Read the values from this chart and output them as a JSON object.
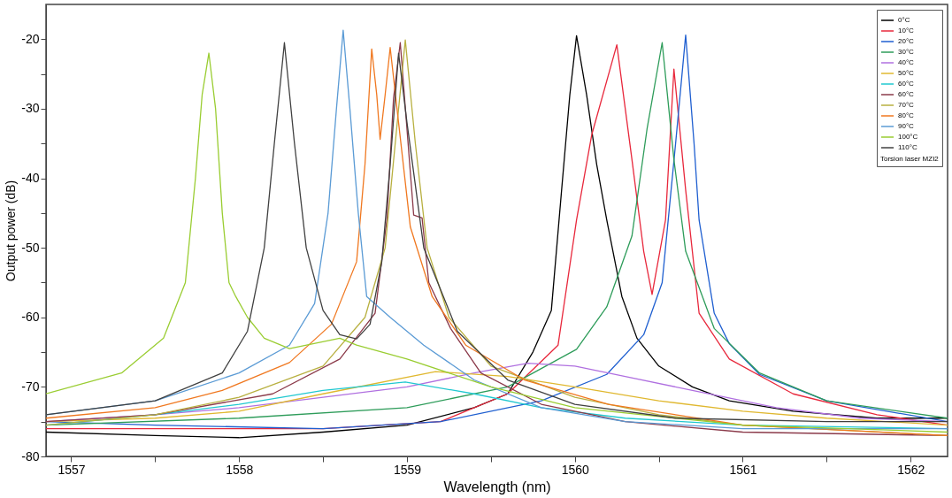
{
  "chart_data": {
    "type": "line",
    "xlabel": "Wavelength (nm)",
    "ylabel": "Output power (dB)",
    "legend_title": "Torsion laser MZI2",
    "legend": "top right",
    "grid": false,
    "marker": "none",
    "line_style": "solid",
    "xlim": [
      1556.85,
      1562.22
    ],
    "ylim": [
      -80,
      -15
    ],
    "xticks": [
      1557,
      {
        "value": 1557.5,
        "label": null
      },
      1558,
      {
        "value": 1558.5,
        "label": null
      },
      1559,
      {
        "value": 1559.5,
        "label": null
      },
      1560,
      {
        "value": 1560.5,
        "label": null
      },
      1561,
      {
        "value": 1561.5,
        "label": null
      },
      1562
    ],
    "yticks": [
      -80,
      {
        "value": -75,
        "label": null
      },
      -70,
      {
        "value": -65,
        "label": null
      },
      -60,
      {
        "value": -55,
        "label": null
      },
      -50,
      {
        "value": -45,
        "label": null
      },
      -40,
      {
        "value": -35,
        "label": null
      },
      -30,
      {
        "value": -25,
        "label": null
      },
      -20
    ],
    "series": [
      {
        "name": "0°C",
        "color": "#000000",
        "x": [
          1556.85,
          1557.5,
          1558,
          1558.5,
          1559,
          1559.4,
          1559.6,
          1559.75,
          1559.86,
          1559.92,
          1559.97,
          1560.01,
          1560.07,
          1560.13,
          1560.19,
          1560.28,
          1560.37,
          1560.5,
          1560.7,
          1560.92,
          1561.3,
          1561.8,
          1562.22
        ],
        "values": [
          -76.5,
          -77,
          -77.3,
          -76.5,
          -75.5,
          -73,
          -71,
          -65,
          -59,
          -42,
          -28,
          -19.5,
          -28,
          -38,
          -46,
          -57,
          -63,
          -67,
          -70,
          -72,
          -73.5,
          -74.5,
          -74.5
        ]
      },
      {
        "name": "10°C",
        "color": "#e8283c",
        "x": [
          1556.85,
          1558.5,
          1559.2,
          1559.6,
          1559.9,
          1560.01,
          1560.1,
          1560.25,
          1560.34,
          1560.41,
          1560.46,
          1560.54,
          1560.59,
          1560.66,
          1560.74,
          1560.92,
          1561.3,
          1561.8,
          1562.22
        ],
        "values": [
          -76,
          -76,
          -75,
          -71,
          -64,
          -46,
          -33.8,
          -20.8,
          -37.3,
          -50.5,
          -56.7,
          -46,
          -24.3,
          -41.7,
          -59.4,
          -66,
          -71,
          -74,
          -75.5
        ]
      },
      {
        "name": "20°C",
        "color": "#1f5fd0",
        "x": [
          1556.85,
          1557.5,
          1558.5,
          1559.2,
          1559.8,
          1560.19,
          1560.41,
          1560.52,
          1560.6,
          1560.66,
          1560.71,
          1560.74,
          1560.83,
          1560.92,
          1561.1,
          1561.5,
          1562.22
        ],
        "values": [
          -75,
          -75.5,
          -76,
          -75,
          -72,
          -68.2,
          -62.5,
          -55,
          -35,
          -19.4,
          -35,
          -46,
          -59.4,
          -63.8,
          -68.2,
          -72,
          -75
        ]
      },
      {
        "name": "30°C",
        "color": "#2e9c5a",
        "x": [
          1556.85,
          1558,
          1559,
          1559.6,
          1560.01,
          1560.19,
          1560.34,
          1560.43,
          1560.52,
          1560.59,
          1560.66,
          1560.83,
          1561.1,
          1561.5,
          1562.22
        ],
        "values": [
          -75.5,
          -74.5,
          -73,
          -70,
          -64.6,
          -58.5,
          -48.3,
          -32.9,
          -20.5,
          -37.3,
          -50.5,
          -61.6,
          -68,
          -72,
          -74.5
        ]
      },
      {
        "name": "40°C",
        "color": "#b070e0",
        "x": [
          1556.85,
          1557.5,
          1558,
          1558.5,
          1559,
          1559.4,
          1559.72,
          1560,
          1560.3,
          1560.7,
          1561.2,
          1561.7,
          1562.22
        ],
        "values": [
          -75,
          -74,
          -73,
          -71.5,
          -70,
          -68,
          -66.6,
          -67,
          -68.5,
          -70.5,
          -73,
          -74.5,
          -75
        ]
      },
      {
        "name": "50°C",
        "color": "#e0b830",
        "x": [
          1556.85,
          1557.5,
          1558,
          1558.5,
          1559.17,
          1559.6,
          1560,
          1560.5,
          1561,
          1561.5,
          1562.22
        ],
        "values": [
          -75,
          -74.5,
          -73.5,
          -71,
          -67.8,
          -68.5,
          -70,
          -72,
          -73.5,
          -74.5,
          -75.5
        ]
      },
      {
        "name": "60°C",
        "color": "#20c8d0",
        "x": [
          1556.85,
          1557.5,
          1558,
          1558.5,
          1558.99,
          1559.4,
          1559.8,
          1560.3,
          1561,
          1562.22
        ],
        "values": [
          -75.5,
          -74,
          -72.5,
          -70.5,
          -69.3,
          -71,
          -73,
          -74.5,
          -75.5,
          -76
        ]
      },
      {
        "name": "60°C",
        "color": "#8b3a4a",
        "x": [
          1556.85,
          1557.5,
          1558.2,
          1558.6,
          1558.81,
          1558.88,
          1558.92,
          1558.96,
          1559.04,
          1559.09,
          1559.13,
          1559.26,
          1559.44,
          1559.8,
          1560.3,
          1561,
          1562.22
        ],
        "values": [
          -75,
          -74,
          -71,
          -66,
          -59.4,
          -46,
          -28.5,
          -20.5,
          -45.3,
          -45.7,
          -55,
          -61.6,
          -68,
          -72.5,
          -75,
          -76.5,
          -77
        ]
      },
      {
        "name": "70°C",
        "color": "#b8b040",
        "x": [
          1556.85,
          1557.5,
          1558,
          1558.5,
          1558.75,
          1558.87,
          1558.93,
          1558.99,
          1559.05,
          1559.12,
          1559.25,
          1559.5,
          1560,
          1560.5,
          1561,
          1562.22
        ],
        "values": [
          -75.5,
          -74,
          -71.5,
          -67,
          -60,
          -50,
          -35,
          -20.1,
          -35,
          -50,
          -60,
          -67,
          -71.5,
          -74,
          -75.5,
          -77
        ]
      },
      {
        "name": "80°C",
        "color": "#f07820",
        "x": [
          1556.85,
          1557.5,
          1557.9,
          1558.3,
          1558.55,
          1558.7,
          1558.75,
          1558.79,
          1558.82,
          1558.84,
          1558.87,
          1558.9,
          1558.95,
          1559.02,
          1559.15,
          1559.35,
          1559.7,
          1560.2,
          1561,
          1562.22
        ],
        "values": [
          -74.5,
          -73,
          -70.5,
          -66.5,
          -61,
          -52,
          -38,
          -21.4,
          -28,
          -34.4,
          -28,
          -21.2,
          -32,
          -47,
          -57,
          -64,
          -69,
          -72.5,
          -75.5,
          -77
        ]
      },
      {
        "name": "90°C",
        "color": "#5b9bd5",
        "x": [
          1556.85,
          1557.5,
          1558,
          1558.3,
          1558.45,
          1558.53,
          1558.58,
          1558.62,
          1558.66,
          1558.71,
          1558.76,
          1558.9,
          1559.1,
          1559.4,
          1559.8,
          1560.3,
          1561,
          1562.22
        ],
        "values": [
          -74,
          -72,
          -68,
          -64,
          -58,
          -45,
          -30,
          -18.7,
          -30,
          -45,
          -57,
          -60,
          -64,
          -69,
          -73,
          -75,
          -76,
          -76
        ]
      },
      {
        "name": "100°C",
        "color": "#9acd32",
        "x": [
          1556.85,
          1557.3,
          1557.55,
          1557.68,
          1557.74,
          1557.78,
          1557.82,
          1557.86,
          1557.9,
          1557.94,
          1557.98,
          1558.05,
          1558.15,
          1558.3,
          1558.6,
          1558.7,
          1559,
          1559.5,
          1560,
          1561,
          1562.22
        ],
        "values": [
          -71,
          -68,
          -63,
          -55,
          -40,
          -28,
          -22,
          -30,
          -45,
          -55,
          -57,
          -60,
          -63,
          -64.5,
          -63,
          -64,
          -66,
          -70,
          -73,
          -75.5,
          -76.5
        ]
      },
      {
        "name": "110°C",
        "color": "#404040",
        "x": [
          1556.85,
          1557.5,
          1557.9,
          1558.05,
          1558.15,
          1558.21,
          1558.27,
          1558.33,
          1558.4,
          1558.5,
          1558.6,
          1558.7,
          1558.78,
          1558.85,
          1558.9,
          1558.95,
          1559,
          1559.1,
          1559.3,
          1559.6,
          1560,
          1560.6,
          1561.5,
          1562.22
        ],
        "values": [
          -74,
          -72,
          -68,
          -62,
          -50,
          -35,
          -20.5,
          -35,
          -50,
          -59,
          -62.5,
          -63.1,
          -61,
          -52,
          -38,
          -22,
          -32,
          -50,
          -62,
          -69,
          -72.5,
          -74.5,
          -75,
          -75
        ]
      }
    ]
  }
}
